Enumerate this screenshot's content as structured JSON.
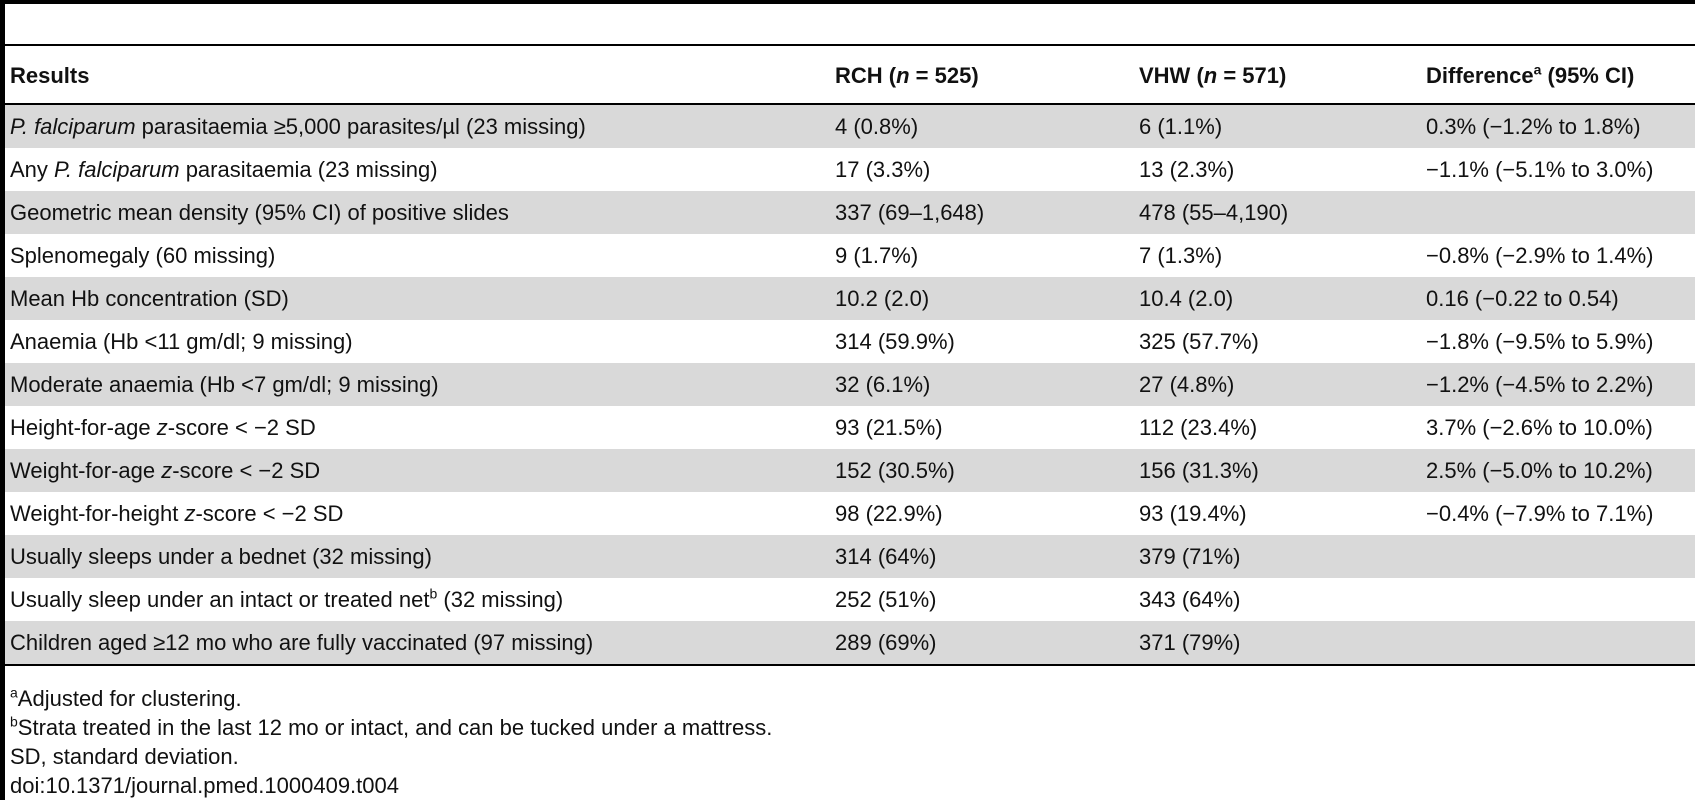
{
  "table": {
    "headers": {
      "results": "Results",
      "rch": "RCH (",
      "rch_n_var": "n",
      "rch_n_val": " = 525)",
      "vhw": "VHW (",
      "vhw_n_var": "n",
      "vhw_n_val": " = 571)",
      "difference": "Difference",
      "difference_sup": "a",
      "difference_ci": " (95% CI)"
    },
    "rows": [
      {
        "label_pre": "",
        "label_italic": "P. falciparum",
        "label_post": " parasitaemia ≥5,000 parasites/µl (23 missing)",
        "label_sup": "",
        "label_tail": "",
        "rch": "4 (0.8%)",
        "vhw": "6 (1.1%)",
        "diff": "0.3% (−1.2% to 1.8%)"
      },
      {
        "label_pre": "Any ",
        "label_italic": "P. falciparum",
        "label_post": " parasitaemia (23 missing)",
        "label_sup": "",
        "label_tail": "",
        "rch": "17 (3.3%)",
        "vhw": "13 (2.3%)",
        "diff": "−1.1% (−5.1% to 3.0%)"
      },
      {
        "label_pre": "Geometric mean density (95% CI) of positive slides",
        "label_italic": "",
        "label_post": "",
        "label_sup": "",
        "label_tail": "",
        "rch": "337 (69–1,648)",
        "vhw": "478 (55–4,190)",
        "diff": ""
      },
      {
        "label_pre": "Splenomegaly (60 missing)",
        "label_italic": "",
        "label_post": "",
        "label_sup": "",
        "label_tail": "",
        "rch": "9 (1.7%)",
        "vhw": "7 (1.3%)",
        "diff": "−0.8% (−2.9% to 1.4%)"
      },
      {
        "label_pre": "Mean Hb concentration (SD)",
        "label_italic": "",
        "label_post": "",
        "label_sup": "",
        "label_tail": "",
        "rch": "10.2 (2.0)",
        "vhw": "10.4 (2.0)",
        "diff": "0.16 (−0.22 to 0.54)"
      },
      {
        "label_pre": "Anaemia (Hb <11 gm/dl; 9 missing)",
        "label_italic": "",
        "label_post": "",
        "label_sup": "",
        "label_tail": "",
        "rch": "314 (59.9%)",
        "vhw": "325 (57.7%)",
        "diff": "−1.8% (−9.5% to 5.9%)"
      },
      {
        "label_pre": "Moderate anaemia (Hb <7 gm/dl; 9 missing)",
        "label_italic": "",
        "label_post": "",
        "label_sup": "",
        "label_tail": "",
        "rch": "32 (6.1%)",
        "vhw": "27 (4.8%)",
        "diff": "−1.2% (−4.5% to 2.2%)"
      },
      {
        "label_pre": "Height-for-age ",
        "label_italic": "z",
        "label_post": "-score < −2 SD",
        "label_sup": "",
        "label_tail": "",
        "rch": "93 (21.5%)",
        "vhw": "112 (23.4%)",
        "diff": "3.7% (−2.6% to 10.0%)"
      },
      {
        "label_pre": "Weight-for-age ",
        "label_italic": "z",
        "label_post": "-score < −2 SD",
        "label_sup": "",
        "label_tail": "",
        "rch": "152 (30.5%)",
        "vhw": "156 (31.3%)",
        "diff": "2.5% (−5.0% to 10.2%)"
      },
      {
        "label_pre": "Weight-for-height ",
        "label_italic": "z",
        "label_post": "-score < −2 SD",
        "label_sup": "",
        "label_tail": "",
        "rch": "98 (22.9%)",
        "vhw": "93 (19.4%)",
        "diff": "−0.4% (−7.9% to 7.1%)"
      },
      {
        "label_pre": "Usually sleeps under a bednet (32 missing)",
        "label_italic": "",
        "label_post": "",
        "label_sup": "",
        "label_tail": "",
        "rch": "314 (64%)",
        "vhw": "379 (71%)",
        "diff": ""
      },
      {
        "label_pre": "Usually sleep under an intact or treated net",
        "label_italic": "",
        "label_post": "",
        "label_sup": "b",
        "label_tail": " (32 missing)",
        "rch": "252 (51%)",
        "vhw": "343 (64%)",
        "diff": ""
      },
      {
        "label_pre": "Children aged ≥12 mo who are fully vaccinated (97 missing)",
        "label_italic": "",
        "label_post": "",
        "label_sup": "",
        "label_tail": "",
        "rch": "289 (69%)",
        "vhw": "371 (79%)",
        "diff": ""
      }
    ]
  },
  "footnotes": {
    "a_mark": "a",
    "a_text": "Adjusted for clustering.",
    "b_mark": "b",
    "b_text": "Strata treated in the last 12 mo or intact, and can be tucked under a mattress.",
    "sd": "SD, standard deviation.",
    "doi": "doi:10.1371/journal.pmed.1000409.t004"
  }
}
